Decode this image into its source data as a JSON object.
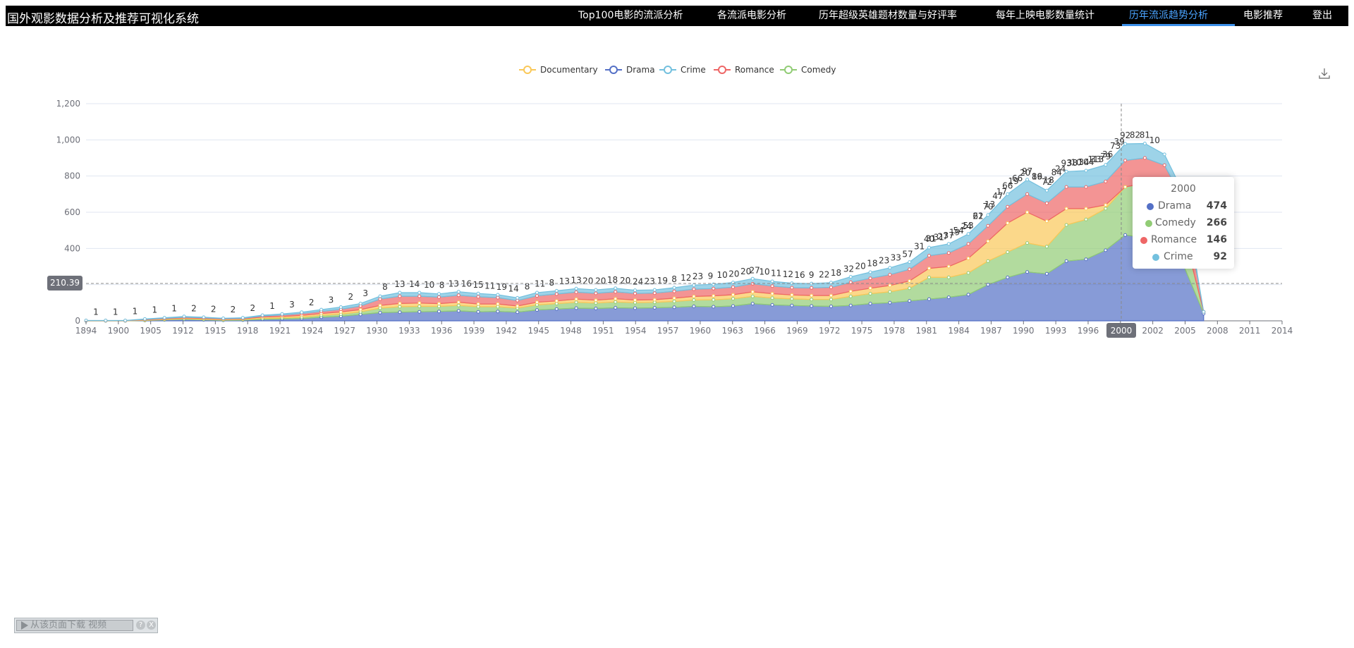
{
  "app_title": "国外观影数据分析及推荐可视化系统",
  "nav": [
    {
      "label": "Top100电影的流派分析",
      "active": false
    },
    {
      "label": "各流派电影分析",
      "active": false
    },
    {
      "label": "历年超级英雄题材数量与好评率",
      "active": false
    },
    {
      "label": "每年上映电影数量统计",
      "active": false
    },
    {
      "label": "历年流派趋势分析",
      "active": true
    },
    {
      "label": "电影推荐",
      "active": false
    },
    {
      "label": "登出",
      "active": false
    }
  ],
  "toolbox": {
    "icon": "download-icon"
  },
  "colors": {
    "Drama": "#5470c6",
    "Comedy": "#91cc75",
    "Documentary": "#fac858",
    "Romance": "#ee6666",
    "Crime": "#73c0de",
    "active_nav": "#4aa3ff"
  },
  "axis_pointer": {
    "y_value": "210.39",
    "x_value": "2000"
  },
  "chart_data": {
    "type": "area",
    "stacked": true,
    "legend": [
      "Documentary",
      "Drama",
      "Crime",
      "Romance",
      "Comedy"
    ],
    "legend_position": "top-center",
    "ylim": [
      0,
      1200
    ],
    "yticks": [
      0,
      200,
      400,
      600,
      800,
      1000,
      1200
    ],
    "ytick_labels": [
      "0",
      "",
      "400",
      "600",
      "800",
      "1,000",
      "1,200"
    ],
    "xtick_labels": [
      "1894",
      "1900",
      "1905",
      "1912",
      "1915",
      "1918",
      "1921",
      "1924",
      "1927",
      "1930",
      "1933",
      "1936",
      "1939",
      "1942",
      "1945",
      "1948",
      "1951",
      "1954",
      "1957",
      "1960",
      "1963",
      "1966",
      "1969",
      "1972",
      "1975",
      "1978",
      "1981",
      "1984",
      "1987",
      "1990",
      "1993",
      "1996",
      "",
      "2002",
      "2005",
      "2008",
      "2011",
      "2014"
    ],
    "x": [
      1894,
      1896,
      1898,
      1900,
      1902,
      1904,
      1906,
      1908,
      1910,
      1912,
      1914,
      1916,
      1918,
      1920,
      1922,
      1924,
      1926,
      1928,
      1930,
      1932,
      1934,
      1936,
      1938,
      1940,
      1942,
      1944,
      1946,
      1948,
      1950,
      1952,
      1954,
      1956,
      1958,
      1960,
      1962,
      1964,
      1966,
      1968,
      1970,
      1972,
      1974,
      1976,
      1978,
      1980,
      1982,
      1984,
      1986,
      1988,
      1990,
      1992,
      1994,
      1996,
      1998,
      2000,
      2002,
      2004,
      2006,
      2008
    ],
    "series": [
      {
        "name": "Drama",
        "values": [
          0,
          0,
          0,
          2,
          5,
          8,
          5,
          3,
          4,
          8,
          10,
          12,
          20,
          25,
          35,
          45,
          48,
          50,
          52,
          55,
          50,
          52,
          48,
          60,
          65,
          70,
          68,
          72,
          70,
          72,
          75,
          80,
          78,
          82,
          95,
          88,
          85,
          82,
          80,
          85,
          95,
          100,
          110,
          120,
          130,
          145,
          200,
          240,
          270,
          260,
          330,
          340,
          390,
          474,
          460,
          420,
          300,
          40
        ]
      },
      {
        "name": "Comedy",
        "values": [
          0,
          0,
          0,
          1,
          2,
          3,
          3,
          2,
          3,
          5,
          6,
          8,
          10,
          12,
          15,
          25,
          30,
          30,
          28,
          30,
          28,
          26,
          22,
          28,
          30,
          32,
          30,
          32,
          30,
          30,
          32,
          35,
          38,
          40,
          40,
          38,
          36,
          36,
          38,
          50,
          55,
          60,
          70,
          120,
          110,
          120,
          130,
          140,
          160,
          150,
          200,
          220,
          230,
          266,
          300,
          240,
          180,
          10
        ]
      },
      {
        "name": "Documentary",
        "values": [
          1,
          1,
          1,
          3,
          4,
          5,
          5,
          4,
          4,
          8,
          8,
          10,
          10,
          12,
          12,
          15,
          18,
          18,
          15,
          18,
          15,
          15,
          12,
          15,
          15,
          18,
          16,
          18,
          15,
          15,
          18,
          20,
          22,
          22,
          25,
          24,
          22,
          22,
          22,
          28,
          30,
          35,
          40,
          50,
          60,
          80,
          110,
          160,
          170,
          140,
          90,
          60,
          20,
          0,
          0,
          0,
          0,
          0
        ]
      },
      {
        "name": "Romance",
        "values": [
          0,
          0,
          0,
          2,
          3,
          4,
          4,
          3,
          3,
          6,
          8,
          10,
          12,
          15,
          20,
          35,
          40,
          38,
          36,
          38,
          40,
          35,
          30,
          35,
          38,
          38,
          38,
          38,
          36,
          36,
          38,
          40,
          40,
          42,
          45,
          42,
          40,
          42,
          45,
          50,
          55,
          60,
          65,
          70,
          75,
          80,
          85,
          90,
          100,
          100,
          120,
          120,
          130,
          146,
          140,
          200,
          180,
          0
        ]
      },
      {
        "name": "Crime",
        "values": [
          1,
          1,
          1,
          2,
          3,
          4,
          3,
          2,
          3,
          4,
          6,
          8,
          10,
          12,
          14,
          16,
          20,
          20,
          18,
          20,
          18,
          16,
          15,
          18,
          18,
          20,
          19,
          20,
          18,
          18,
          20,
          22,
          24,
          26,
          28,
          26,
          25,
          24,
          26,
          30,
          34,
          38,
          40,
          45,
          50,
          55,
          60,
          70,
          80,
          70,
          85,
          90,
          92,
          92,
          80,
          60,
          40,
          0
        ]
      }
    ],
    "point_labels": [
      {
        "x": 1895,
        "t": "1"
      },
      {
        "x": 1897,
        "t": "1"
      },
      {
        "x": 1899,
        "t": "1"
      },
      {
        "x": 1901,
        "t": "1"
      },
      {
        "x": 1903,
        "t": "1"
      },
      {
        "x": 1905,
        "t": "2"
      },
      {
        "x": 1907,
        "t": "2"
      },
      {
        "x": 1909,
        "t": "2"
      },
      {
        "x": 1911,
        "t": "2"
      },
      {
        "x": 1913,
        "t": "1"
      },
      {
        "x": 1915,
        "t": "3"
      },
      {
        "x": 1917,
        "t": "2"
      },
      {
        "x": 1919,
        "t": "3"
      },
      {
        "x": 1921,
        "t": "2"
      },
      {
        "x": 1922.5,
        "t": "3"
      },
      {
        "x": 1924.5,
        "t": "8"
      },
      {
        "x": 1926,
        "t": "13"
      },
      {
        "x": 1927.5,
        "t": "14"
      },
      {
        "x": 1929,
        "t": "10"
      },
      {
        "x": 1930.3,
        "t": "8"
      },
      {
        "x": 1931.5,
        "t": "13"
      },
      {
        "x": 1932.8,
        "t": "16"
      },
      {
        "x": 1934,
        "t": "15"
      },
      {
        "x": 1935.2,
        "t": "11"
      },
      {
        "x": 1936.4,
        "t": "19"
      },
      {
        "x": 1937.6,
        "t": "14"
      },
      {
        "x": 1939,
        "t": "8"
      },
      {
        "x": 1940.3,
        "t": "11"
      },
      {
        "x": 1941.5,
        "t": "8"
      },
      {
        "x": 1942.8,
        "t": "13"
      },
      {
        "x": 1944,
        "t": "13"
      },
      {
        "x": 1945.2,
        "t": "20"
      },
      {
        "x": 1946.5,
        "t": "20"
      },
      {
        "x": 1947.7,
        "t": "18"
      },
      {
        "x": 1949,
        "t": "20"
      },
      {
        "x": 1950.3,
        "t": "24"
      },
      {
        "x": 1951.5,
        "t": "23"
      },
      {
        "x": 1952.8,
        "t": "19"
      },
      {
        "x": 1954,
        "t": "8"
      },
      {
        "x": 1955.2,
        "t": "12"
      },
      {
        "x": 1956.4,
        "t": "23"
      },
      {
        "x": 1957.7,
        "t": "9"
      },
      {
        "x": 1958.9,
        "t": "10"
      },
      {
        "x": 1960.1,
        "t": "20"
      },
      {
        "x": 1961.3,
        "t": "20"
      },
      {
        "x": 1962.2,
        "t": "27"
      },
      {
        "x": 1963.2,
        "t": "10"
      },
      {
        "x": 1964.4,
        "t": "11"
      },
      {
        "x": 1965.6,
        "t": "12"
      },
      {
        "x": 1966.8,
        "t": "16"
      },
      {
        "x": 1968,
        "t": "9"
      },
      {
        "x": 1969.3,
        "t": "22"
      },
      {
        "x": 1970.5,
        "t": "18"
      },
      {
        "x": 1971.8,
        "t": "32"
      },
      {
        "x": 1973,
        "t": "20"
      },
      {
        "x": 1974.2,
        "t": "18"
      },
      {
        "x": 1975.4,
        "t": "23"
      },
      {
        "x": 1976.6,
        "t": "33"
      },
      {
        "x": 1977.8,
        "t": "57"
      },
      {
        "x": 1979,
        "t": "31"
      },
      {
        "x": 1980.2,
        "t": "31"
      },
      {
        "x": 1981.4,
        "t": "27"
      },
      {
        "x": 1982.6,
        "t": "19"
      },
      {
        "x": 1983.8,
        "t": "24"
      },
      {
        "x": 1985,
        "t": "22"
      },
      {
        "x": 1986.2,
        "t": "13"
      },
      {
        "x": 1987.4,
        "t": "17"
      },
      {
        "x": 1988.6,
        "t": "19"
      },
      {
        "x": 1989.8,
        "t": "20"
      },
      {
        "x": 1991,
        "t": "16"
      },
      {
        "x": 1992.2,
        "t": "18"
      },
      {
        "x": 1993.4,
        "t": "24"
      },
      {
        "x": 1994.6,
        "t": "38"
      },
      {
        "x": 1995.8,
        "t": "34"
      },
      {
        "x": 1997,
        "t": "33"
      },
      {
        "x": 1998.2,
        "t": "36"
      },
      {
        "x": 1999.4,
        "t": "39"
      }
    ],
    "modern_labels": [
      {
        "x": 1980,
        "t": "40"
      },
      {
        "x": 1981,
        "t": "31"
      },
      {
        "x": 1982,
        "t": "37"
      },
      {
        "x": 1983,
        "t": "54"
      },
      {
        "x": 1984,
        "t": "53"
      },
      {
        "x": 1985,
        "t": "61"
      },
      {
        "x": 1986,
        "t": "70"
      },
      {
        "x": 1987,
        "t": "47"
      },
      {
        "x": 1988,
        "t": "66"
      },
      {
        "x": 1989,
        "t": "66"
      },
      {
        "x": 1990,
        "t": "97"
      },
      {
        "x": 1991,
        "t": "89"
      },
      {
        "x": 1992,
        "t": "72"
      },
      {
        "x": 1993,
        "t": "84"
      },
      {
        "x": 1994,
        "t": "93"
      },
      {
        "x": 1995,
        "t": "10"
      },
      {
        "x": 1996,
        "t": "104"
      },
      {
        "x": 1997,
        "t": "113"
      },
      {
        "x": 1998,
        "t": "79"
      },
      {
        "x": 1999,
        "t": "73"
      },
      {
        "x": 2000,
        "t": "92"
      },
      {
        "x": 2001,
        "t": "82"
      },
      {
        "x": 2002,
        "t": "81"
      },
      {
        "x": 2003,
        "t": "10"
      }
    ]
  },
  "tooltip": {
    "title": "2000",
    "rows": [
      {
        "name": "Drama",
        "value": "474",
        "color": "#5470c6"
      },
      {
        "name": "Comedy",
        "value": "266",
        "color": "#91cc75"
      },
      {
        "name": "Romance",
        "value": "146",
        "color": "#ee6666"
      },
      {
        "name": "Crime",
        "value": "92",
        "color": "#73c0de"
      }
    ]
  },
  "video_bar": {
    "label": "从该页面下载 视频",
    "help": "?",
    "close": "X"
  }
}
